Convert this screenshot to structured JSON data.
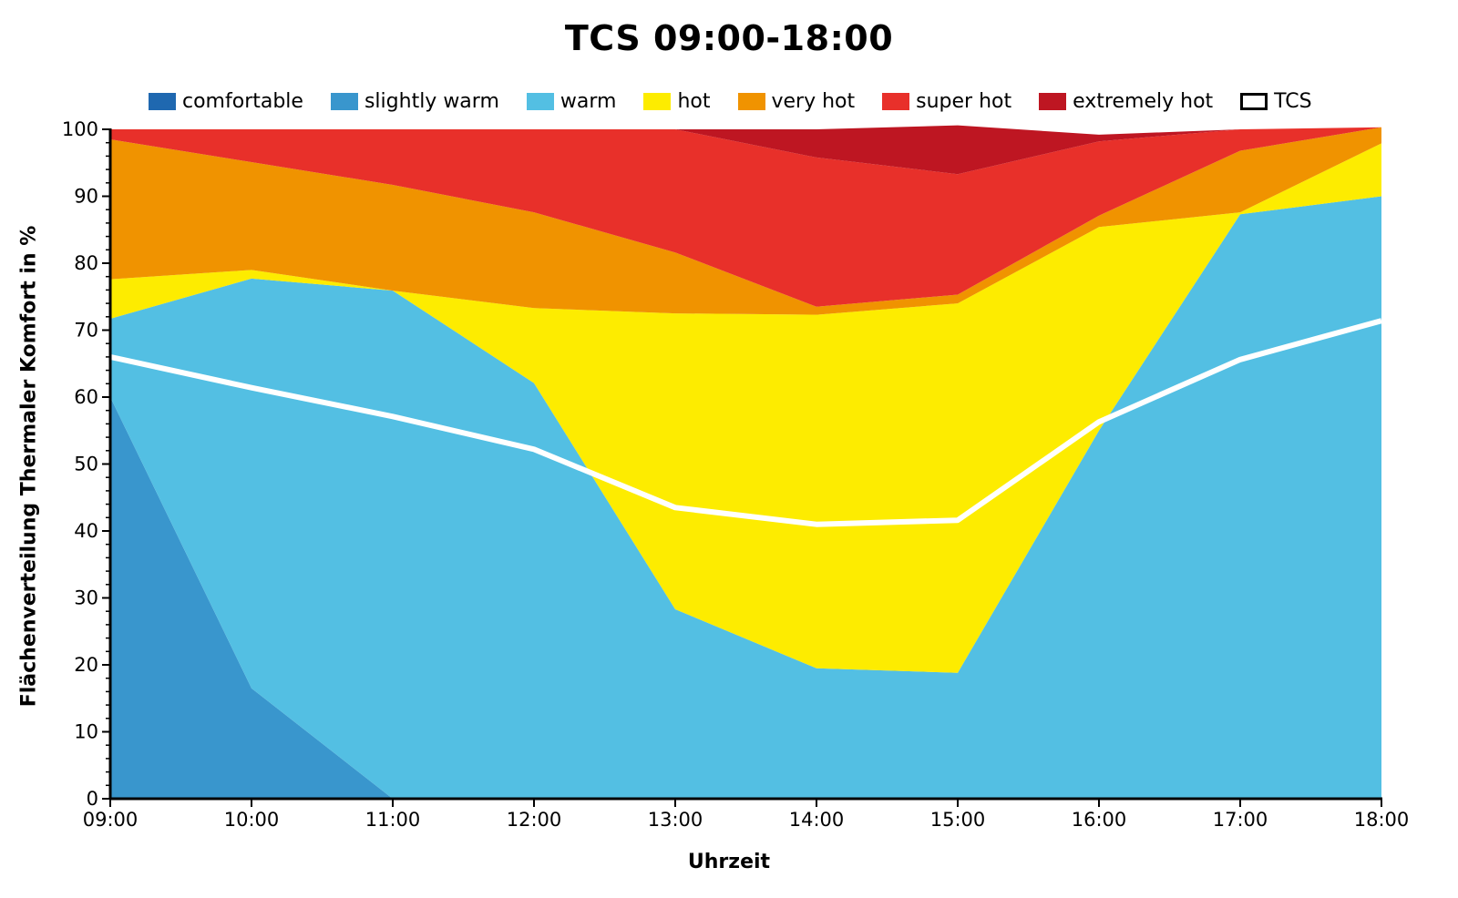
{
  "chart_data": {
    "type": "area",
    "stacked": true,
    "title": "TCS 09:00-18:00",
    "xlabel": "Uhrzeit",
    "ylabel": "Flächenverteilung Thermaler Komfort in %",
    "ylim": [
      0,
      100
    ],
    "y_ticks": [
      "0",
      "10",
      "20",
      "30",
      "40",
      "50",
      "60",
      "70",
      "80",
      "90",
      "100"
    ],
    "categories": [
      "09:00",
      "10:00",
      "11:00",
      "12:00",
      "13:00",
      "14:00",
      "15:00",
      "16:00",
      "17:00",
      "18:00"
    ],
    "series": [
      {
        "name": "comfortable",
        "color": "#1f68b0",
        "values": [
          0,
          0,
          0,
          0,
          0,
          0,
          0,
          0,
          0,
          0
        ]
      },
      {
        "name": "slightly warm",
        "color": "#3996cd",
        "values": [
          60,
          16.5,
          0,
          0,
          0,
          0,
          0,
          0,
          0,
          0
        ]
      },
      {
        "name": "warm",
        "color": "#53bfe3",
        "values": [
          11.7,
          61.2,
          75.9,
          62.1,
          28.3,
          19.5,
          18.8,
          55,
          87.3,
          90
        ]
      },
      {
        "name": "hot",
        "color": "#fdec00",
        "values": [
          5.9,
          1.3,
          0,
          11.2,
          44.2,
          52.8,
          55.2,
          30.4,
          0.3,
          7.9
        ]
      },
      {
        "name": "very hot",
        "color": "#f09300",
        "values": [
          20.9,
          16.1,
          15.8,
          14.3,
          9.1,
          1.2,
          1.3,
          1.7,
          9.2,
          2.4
        ]
      },
      {
        "name": "super hot",
        "color": "#e8302a",
        "values": [
          1.5,
          4.9,
          8.3,
          12.4,
          18.4,
          22.3,
          18,
          11.1,
          3.2,
          0
        ]
      },
      {
        "name": "extremely hot",
        "color": "#be1622",
        "values": [
          0,
          0,
          0,
          0,
          0,
          4.2,
          7.3,
          1,
          0,
          0
        ]
      }
    ],
    "line": {
      "name": "TCS",
      "color": "#ffffff",
      "values": [
        66,
        61.4,
        57.1,
        52.2,
        43.5,
        41,
        41.6,
        56.3,
        65.6,
        71.4
      ]
    },
    "legend_position": "top",
    "grid": false
  }
}
